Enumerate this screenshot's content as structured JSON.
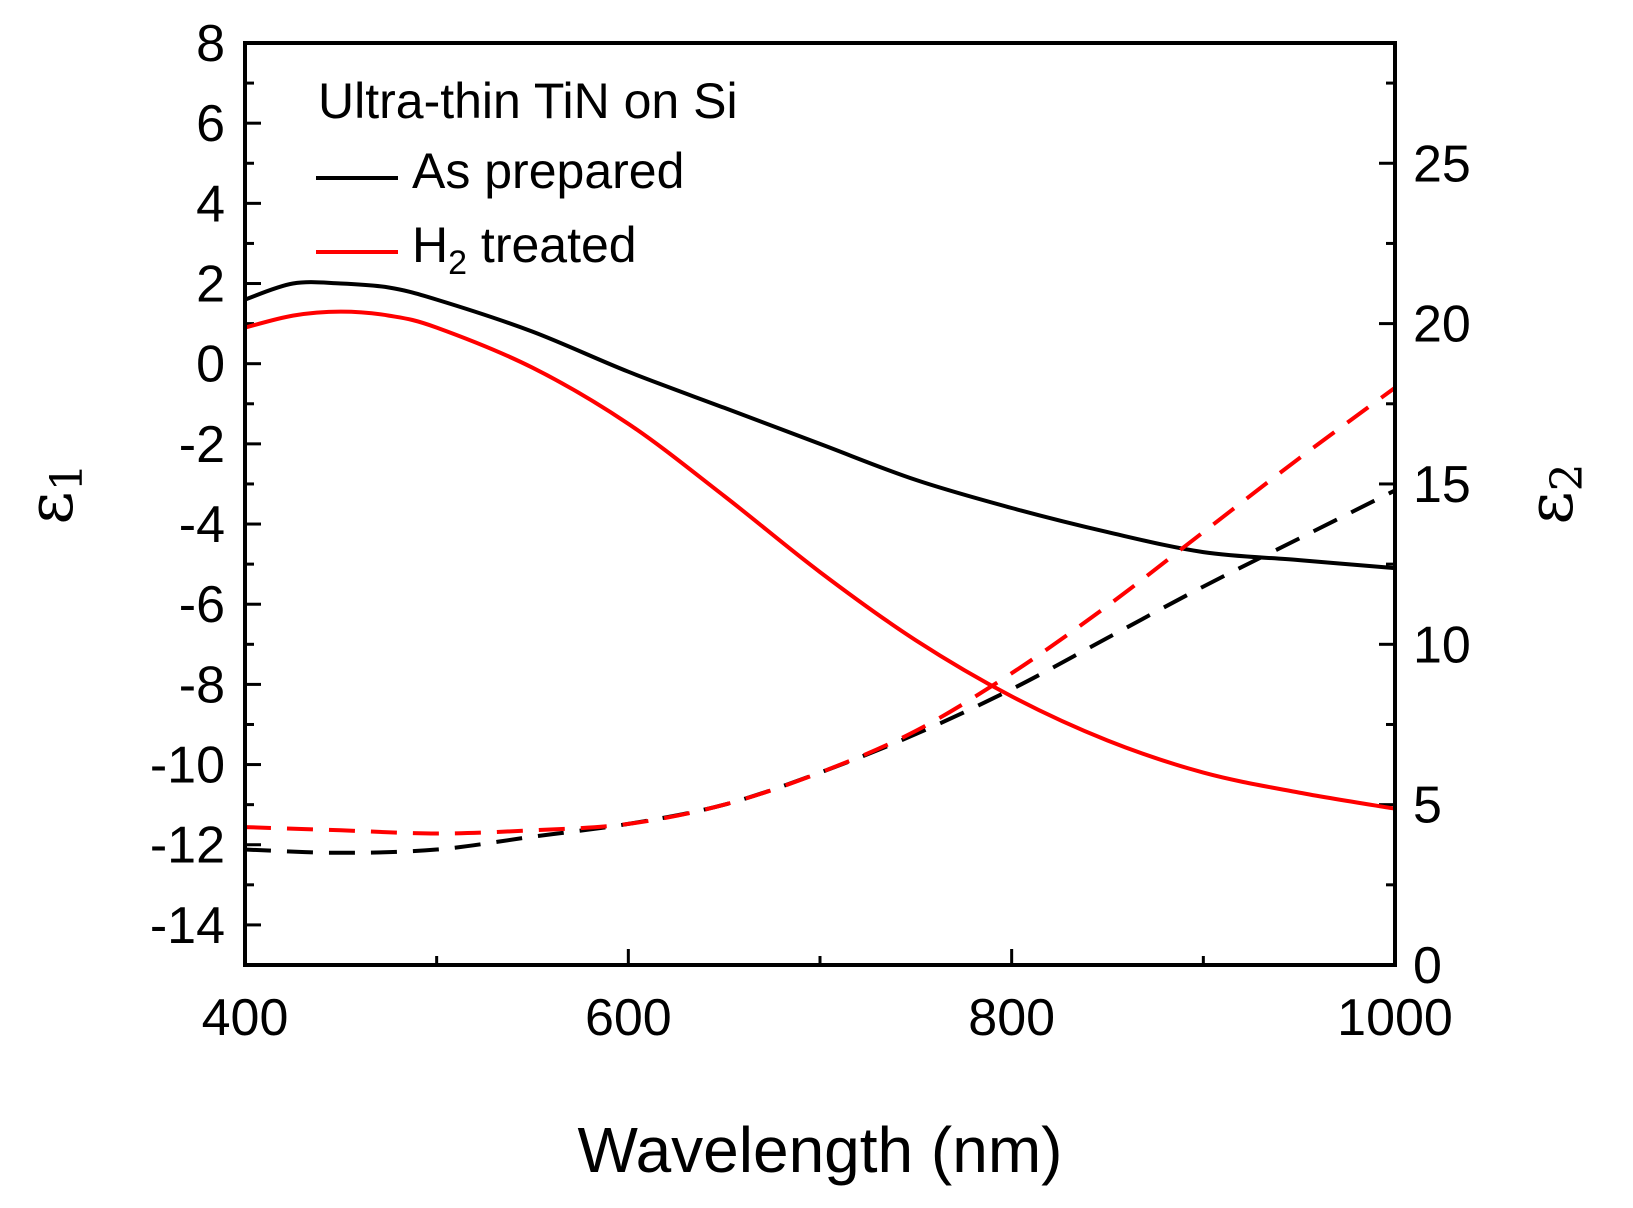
{
  "chart_data": {
    "type": "line",
    "title": "Ultra-thin TiN on Si",
    "xlabel": "Wavelength (nm)",
    "ylabel_left": {
      "symbol": "ε",
      "subscript": "1"
    },
    "ylabel_right": {
      "symbol": "ε",
      "subscript": "2"
    },
    "xlim": [
      400,
      1000
    ],
    "ylim_left": [
      -15,
      8
    ],
    "ylim_right": [
      0,
      28.75
    ],
    "x_ticks": [
      400,
      600,
      800,
      1000
    ],
    "x_tick_labels": [
      "400",
      "600",
      "800",
      "1000"
    ],
    "y_left_ticks": [
      8,
      6,
      4,
      2,
      0,
      -2,
      -4,
      -6,
      -8,
      -10,
      -12,
      -14
    ],
    "y_left_tick_labels": [
      "8",
      "6",
      "4",
      "2",
      "0",
      "-2",
      "-4",
      "-6",
      "-8",
      "-10",
      "-12",
      "-14"
    ],
    "y_right_ticks": [
      25,
      20,
      15,
      10,
      5,
      0
    ],
    "y_right_tick_labels": [
      "25",
      "20",
      "15",
      "10",
      "5",
      "0"
    ],
    "legend": {
      "title": "Ultra-thin TiN on Si",
      "placement": "top-left",
      "entries": [
        {
          "label": "As prepared",
          "color": "#000000"
        },
        {
          "label": "H",
          "subscript": "2",
          "suffix": " treated",
          "color": "#ff0000"
        }
      ]
    },
    "series": [
      {
        "name": "As prepared ε1",
        "axis": "left",
        "style": "solid",
        "color": "#000000",
        "x": [
          400,
          425,
          450,
          475,
          500,
          550,
          600,
          650,
          700,
          750,
          800,
          850,
          900,
          950,
          1000
        ],
        "y": [
          1.6,
          2.0,
          2.0,
          1.9,
          1.6,
          0.8,
          -0.2,
          -1.1,
          -2.0,
          -2.9,
          -3.6,
          -4.2,
          -4.7,
          -4.9,
          -5.1
        ]
      },
      {
        "name": "H2 treated ε1",
        "axis": "left",
        "style": "solid",
        "color": "#ff0000",
        "x": [
          400,
          425,
          450,
          475,
          500,
          550,
          600,
          650,
          700,
          750,
          800,
          850,
          900,
          950,
          1000
        ],
        "y": [
          0.9,
          1.2,
          1.3,
          1.2,
          0.9,
          -0.1,
          -1.5,
          -3.3,
          -5.2,
          -6.9,
          -8.3,
          -9.4,
          -10.2,
          -10.7,
          -11.1
        ]
      },
      {
        "name": "As prepared ε2",
        "axis": "right",
        "style": "dashed",
        "color": "#000000",
        "x": [
          400,
          450,
          500,
          550,
          600,
          650,
          700,
          750,
          800,
          850,
          900,
          950,
          1000
        ],
        "y": [
          3.6,
          3.5,
          3.6,
          4.0,
          4.4,
          5.0,
          6.0,
          7.2,
          8.6,
          10.2,
          11.8,
          13.3,
          14.8
        ]
      },
      {
        "name": "H2 treated ε2",
        "axis": "right",
        "style": "dashed",
        "color": "#ff0000",
        "x": [
          400,
          450,
          500,
          550,
          600,
          650,
          700,
          750,
          800,
          850,
          900,
          950,
          1000
        ],
        "y": [
          4.3,
          4.2,
          4.1,
          4.2,
          4.4,
          5.0,
          6.0,
          7.3,
          9.1,
          11.2,
          13.5,
          15.8,
          18.0
        ]
      }
    ]
  }
}
